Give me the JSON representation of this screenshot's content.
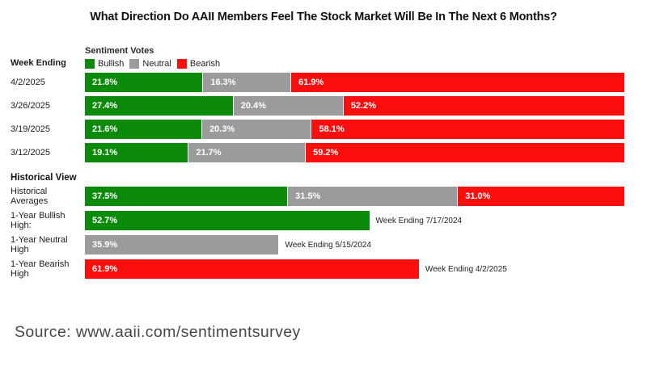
{
  "title": "What Direction Do AAII Members Feel The Stock Market Will Be In The Next 6 Months?",
  "source_text": "Source: www.aaii.com/sentimentsurvey",
  "colors": {
    "bullish": "#0b8a0b",
    "neutral": "#9b9b9b",
    "bearish": "#fb0e0e"
  },
  "chart_data": {
    "type": "bar",
    "orientation": "horizontal",
    "stacked": true,
    "unit": "%",
    "axis_range": [
      0,
      100
    ],
    "grid": false,
    "legend_position": "top-left above bars",
    "week_ending_label": "Week Ending",
    "legend": {
      "title": "Sentiment Votes",
      "items": [
        {
          "label": "Bullish"
        },
        {
          "label": "Neutral"
        },
        {
          "label": "Bearish"
        }
      ]
    },
    "weekly": [
      {
        "week": "4/2/2025",
        "segments": [
          {
            "name": "Bullish",
            "pct": 21.8,
            "label": "21.8%"
          },
          {
            "name": "Neutral",
            "pct": 16.3,
            "label": "16.3%"
          },
          {
            "name": "Bearish",
            "pct": 61.9,
            "label": "61.9%"
          }
        ]
      },
      {
        "week": "3/26/2025",
        "segments": [
          {
            "name": "Bullish",
            "pct": 27.4,
            "label": "27.4%"
          },
          {
            "name": "Neutral",
            "pct": 20.4,
            "label": "20.4%"
          },
          {
            "name": "Bearish",
            "pct": 52.2,
            "label": "52.2%"
          }
        ]
      },
      {
        "week": "3/19/2025",
        "segments": [
          {
            "name": "Bullish",
            "pct": 21.6,
            "label": "21.6%"
          },
          {
            "name": "Neutral",
            "pct": 20.3,
            "label": "20.3%"
          },
          {
            "name": "Bearish",
            "pct": 58.1,
            "label": "58.1%"
          }
        ]
      },
      {
        "week": "3/12/2025",
        "segments": [
          {
            "name": "Bullish",
            "pct": 19.1,
            "label": "19.1%"
          },
          {
            "name": "Neutral",
            "pct": 21.7,
            "label": "21.7%"
          },
          {
            "name": "Bearish",
            "pct": 59.2,
            "label": "59.2%"
          }
        ]
      }
    ],
    "historical": {
      "section_label": "Historical View",
      "averages": {
        "label": "Historical Averages",
        "segments": [
          {
            "name": "Bullish",
            "pct": 37.5,
            "label": "37.5%"
          },
          {
            "name": "Neutral",
            "pct": 31.5,
            "label": "31.5%"
          },
          {
            "name": "Bearish",
            "pct": 31.0,
            "label": "31.0%"
          }
        ]
      },
      "highs": [
        {
          "label": "1-Year Bullish High:",
          "series": "Bullish",
          "pct": 52.7,
          "value_label": "52.7%",
          "note": "Week Ending 7/17/2024"
        },
        {
          "label": "1-Year Neutral High",
          "series": "Neutral",
          "pct": 35.9,
          "value_label": "35.9%",
          "note": "Week Ending 5/15/2024"
        },
        {
          "label": "1-Year Bearish High",
          "series": "Bearish",
          "pct": 61.9,
          "value_label": "61.9%",
          "note": "Week Ending 4/2/2025"
        }
      ]
    }
  }
}
